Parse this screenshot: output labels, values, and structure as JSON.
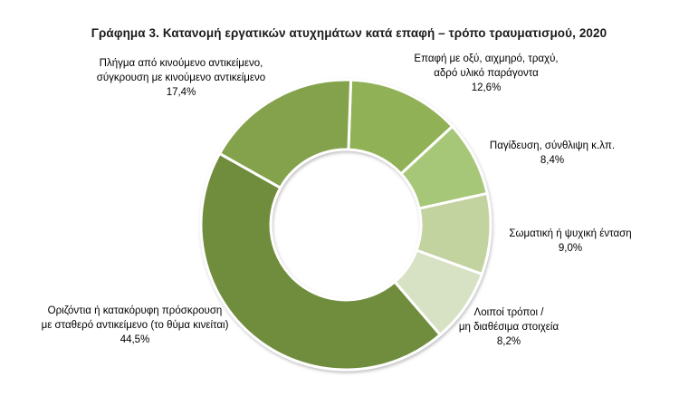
{
  "chart_title": "Γράφημα 3. Κατανομή εργατικών ατυχημάτων κατά επαφή – τρόπο τραυματισμού, 2020",
  "chart_data": {
    "type": "pie",
    "subtype": "donut",
    "title": "Γράφημα 3. Κατανομή εργατικών ατυχημάτων κατά επαφή – τρόπο τραυματισμού, 2020",
    "unit": "%",
    "legend": "none",
    "data_labels": "outside",
    "start_angle_deg": 2,
    "clockwise": true,
    "inner_radius_ratio": 0.52,
    "slices": [
      {
        "label": "Επαφή με οξύ, αιχμηρό, τραχύ, αδρό υλικό παράγοντα",
        "label_lines": [
          "Επαφή με οξύ, αιχμηρό, τραχύ,",
          "αδρό υλικό παράγοντα"
        ],
        "value": 12.6,
        "value_label": "12,6%",
        "color": "#90b156"
      },
      {
        "label": "Παγίδευση, σύνθλιψη κ.λπ.",
        "label_lines": [
          "Παγίδευση, σύνθλιψη κ.λπ."
        ],
        "value": 8.4,
        "value_label": "8,4%",
        "color": "#a7c778"
      },
      {
        "label": "Σωματική ή ψυχική ένταση",
        "label_lines": [
          "Σωματική ή ψυχική ένταση"
        ],
        "value": 9.0,
        "value_label": "9,0%",
        "color": "#c2d3a0"
      },
      {
        "label": "Λοιποί τρόποι / μη διαθέσιμα στοιχεία",
        "label_lines": [
          "Λοιποί τρόποι /",
          "μη διαθέσιμα στοιχεία"
        ],
        "value": 8.2,
        "value_label": "8,2%",
        "color": "#d7e1c3"
      },
      {
        "label": "Οριζόντια ή κατακόρυφη πρόσκρουση με σταθερό αντικείμενο (το θύμα κινείται)",
        "label_lines": [
          "Οριζόντια ή κατακόρυφη πρόσκρουση",
          "με σταθερό αντικείμενο (το θύμα κινείται)"
        ],
        "value": 44.5,
        "value_label": "44,5%",
        "color": "#6f8d3c"
      },
      {
        "label": "Πλήγμα από κινούμενο αντικείμενο, σύγκρουση με κινούμενο αντικείμενο",
        "label_lines": [
          "Πλήγμα από κινούμενο αντικείμενο,",
          "σύγκρουση με κινούμενο αντικείμενο"
        ],
        "value": 17.4,
        "value_label": "17,4%",
        "color": "#84a24c"
      }
    ]
  }
}
